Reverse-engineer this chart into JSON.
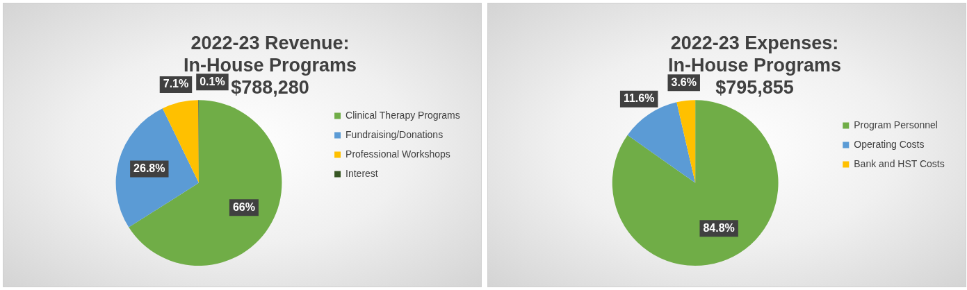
{
  "chart_data": [
    {
      "type": "pie",
      "title": "2022-23 Revenue:\nIn-House Programs\n$788,280",
      "categories": [
        "Clinical Therapy Programs",
        "Fundraising/Donations",
        "Professional Workshops",
        "Interest"
      ],
      "values": [
        66,
        26.8,
        7.1,
        0.1
      ],
      "colors": [
        "#70ad47",
        "#5b9bd5",
        "#ffc000",
        "#375623"
      ],
      "value_labels": [
        "66%",
        "26.8%",
        "7.1%",
        "0.1%"
      ],
      "legend": "right"
    },
    {
      "type": "pie",
      "title": "2022-23 Expenses:\nIn-House Programs\n$795,855",
      "categories": [
        "Program Personnel",
        "Operating Costs",
        "Bank and HST Costs"
      ],
      "values": [
        84.8,
        11.6,
        3.6
      ],
      "colors": [
        "#70ad47",
        "#5b9bd5",
        "#ffc000"
      ],
      "value_labels": [
        "84.8%",
        "11.6%",
        "3.6%"
      ],
      "legend": "right"
    }
  ]
}
